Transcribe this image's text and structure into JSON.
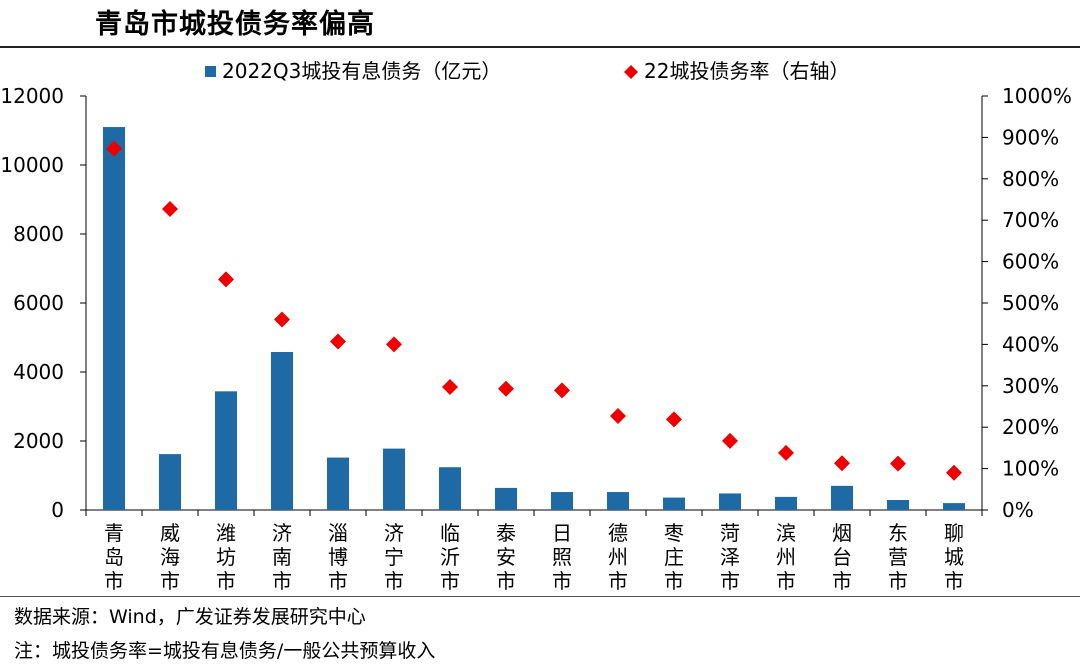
{
  "title": "青岛市城投债务率偏高",
  "source": "数据来源：Wind，广发证券发展研究中心",
  "note": "注：城投债务率=城投有息债务/一般公共预算收入",
  "colors": {
    "bar": "#1f6aa5",
    "marker": "#ee0000"
  },
  "chart_data": {
    "type": "bar",
    "categories": [
      "青岛市",
      "威海市",
      "潍坊市",
      "济南市",
      "淄博市",
      "济宁市",
      "临沂市",
      "泰安市",
      "日照市",
      "德州市",
      "枣庄市",
      "菏泽市",
      "滨州市",
      "烟台市",
      "东营市",
      "聊城市"
    ],
    "series": [
      {
        "name": "2022Q3城投有息债务（亿元）",
        "kind": "bar",
        "axis": "left",
        "values": [
          11100,
          1620,
          3440,
          4580,
          1520,
          1780,
          1240,
          640,
          520,
          520,
          360,
          480,
          380,
          700,
          290,
          200
        ]
      },
      {
        "name": "22城投债务率（右轴）",
        "kind": "scatter",
        "axis": "right",
        "values": [
          873,
          727,
          557,
          460,
          407,
          400,
          297,
          293,
          289,
          227,
          219,
          167,
          138,
          113,
          112,
          90
        ]
      }
    ],
    "left_axis": {
      "min": 0,
      "max": 12000,
      "ticks": [
        "0",
        "2000",
        "4000",
        "6000",
        "8000",
        "10000",
        "12000"
      ]
    },
    "right_axis": {
      "min": 0,
      "max": 1000,
      "unit": "%",
      "ticks": [
        "0%",
        "100%",
        "200%",
        "300%",
        "400%",
        "500%",
        "600%",
        "700%",
        "800%",
        "900%",
        "1000%"
      ]
    },
    "legend_position": "top",
    "grid": false
  }
}
